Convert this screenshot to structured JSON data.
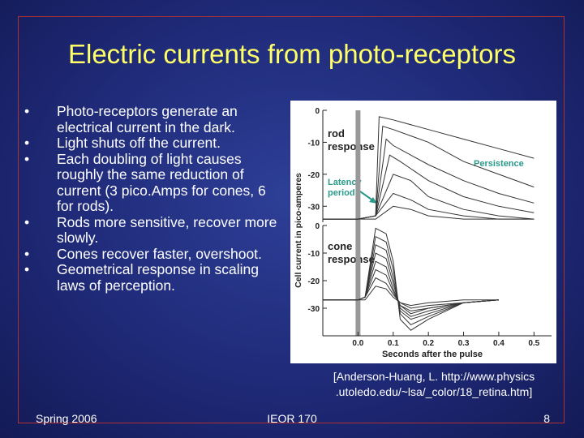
{
  "slide": {
    "title": "Electric currents from photo-receptors",
    "bullets": [
      "Photo-receptors generate an electrical current in the dark.",
      "Light shuts off the current.",
      "Each doubling of light causes roughly the same reduction of current (3 pico.Amps for cones, 6 for rods).",
      "Rods more sensitive, recover more slowly.",
      "Cones recover faster, overshoot.",
      "Geometrical response in scaling laws of perception."
    ],
    "bullet_marker": "•",
    "citation_line1": "[Anderson-Huang, L. http://www.physics",
    "citation_line2": ".utoledo.edu/~lsa/_color/18_retina.htm]",
    "footer_left": "Spring 2006",
    "footer_center": "IEOR 170",
    "footer_right": "8"
  },
  "colors": {
    "title": "#ffff66",
    "text": "#ffffff",
    "trace": "#333333",
    "annotation": "#2a9a8a",
    "stimulus_bar": "#999999"
  },
  "chart_data": {
    "type": "line",
    "ylabel": "Cell current in pico-amperes",
    "xlabel": "Seconds after the pulse",
    "xlim": [
      -0.1,
      0.55
    ],
    "x_ticks": [
      "0.0",
      "0.1",
      "0.2",
      "0.3",
      "0.4",
      "0.5"
    ],
    "x_tick_values": [
      0.0,
      0.1,
      0.2,
      0.3,
      0.4,
      0.5
    ],
    "stimulus_time": 0.0,
    "panels": [
      {
        "name": "rod",
        "label_line1": "rod",
        "label_line2": "response",
        "ylim": [
          -35,
          0
        ],
        "y_ticks": [
          "0",
          "-10",
          "-20",
          "-30"
        ],
        "y_tick_values": [
          0,
          -10,
          -20,
          -30
        ],
        "annotations": [
          {
            "text": "Persistence",
            "color": "#2a9a8a"
          },
          {
            "text_line1": "Latency",
            "text_line2": "period",
            "color": "#2a9a8a"
          }
        ],
        "series": [
          {
            "x": [
              -0.1,
              0.0,
              0.05,
              0.06,
              0.1,
              0.2,
              0.3,
              0.4,
              0.5
            ],
            "y": [
              -34,
              -34,
              -33,
              -2,
              -3,
              -6,
              -9,
              -12,
              -15
            ]
          },
          {
            "x": [
              -0.1,
              0.0,
              0.05,
              0.07,
              0.1,
              0.2,
              0.3,
              0.4,
              0.5
            ],
            "y": [
              -34,
              -34,
              -33,
              -5,
              -6,
              -10,
              -16,
              -20,
              -24
            ]
          },
          {
            "x": [
              -0.1,
              0.0,
              0.05,
              0.08,
              0.1,
              0.2,
              0.3,
              0.4,
              0.5
            ],
            "y": [
              -34,
              -34,
              -33,
              -9,
              -11,
              -17,
              -22,
              -26,
              -29
            ]
          },
          {
            "x": [
              -0.1,
              0.0,
              0.05,
              0.09,
              0.12,
              0.2,
              0.3,
              0.4,
              0.5
            ],
            "y": [
              -34,
              -34,
              -33,
              -14,
              -16,
              -22,
              -27,
              -30,
              -32
            ]
          },
          {
            "x": [
              -0.1,
              0.0,
              0.05,
              0.1,
              0.15,
              0.2,
              0.3,
              0.4,
              0.5
            ],
            "y": [
              -34,
              -34,
              -33,
              -20,
              -22,
              -27,
              -31,
              -33,
              -34
            ]
          },
          {
            "x": [
              -0.1,
              0.0,
              0.05,
              0.1,
              0.15,
              0.2,
              0.3,
              0.4,
              0.5
            ],
            "y": [
              -34,
              -34,
              -33,
              -26,
              -28,
              -31,
              -33,
              -34,
              -34
            ]
          },
          {
            "x": [
              -0.1,
              0.0,
              0.05,
              0.1,
              0.15,
              0.2,
              0.3,
              0.4,
              0.5
            ],
            "y": [
              -34,
              -34,
              -34,
              -30,
              -31,
              -33,
              -34,
              -34,
              -34
            ]
          }
        ]
      },
      {
        "name": "cone",
        "label_line1": "cone",
        "label_line2": "response",
        "ylim": [
          -40,
          0
        ],
        "y_ticks": [
          "0",
          "-10",
          "-20",
          "-30"
        ],
        "y_tick_values": [
          0,
          -10,
          -20,
          -30
        ],
        "series": [
          {
            "x": [
              -0.1,
              0.0,
              0.02,
              0.05,
              0.08,
              0.1,
              0.12,
              0.15,
              0.2,
              0.3,
              0.4
            ],
            "y": [
              -27,
              -27,
              -26,
              -1,
              -3,
              -13,
              -34,
              -38,
              -34,
              -28,
              -27
            ]
          },
          {
            "x": [
              -0.1,
              0.0,
              0.02,
              0.05,
              0.08,
              0.1,
              0.12,
              0.15,
              0.2,
              0.3,
              0.4
            ],
            "y": [
              -27,
              -27,
              -26,
              -4,
              -6,
              -16,
              -32,
              -36,
              -33,
              -28,
              -27
            ]
          },
          {
            "x": [
              -0.1,
              0.0,
              0.02,
              0.05,
              0.08,
              0.1,
              0.12,
              0.15,
              0.2,
              0.3,
              0.4
            ],
            "y": [
              -27,
              -27,
              -26,
              -7,
              -9,
              -19,
              -31,
              -34,
              -32,
              -28,
              -27
            ]
          },
          {
            "x": [
              -0.1,
              0.0,
              0.02,
              0.05,
              0.08,
              0.1,
              0.12,
              0.15,
              0.2,
              0.3,
              0.4
            ],
            "y": [
              -27,
              -27,
              -26,
              -10,
              -12,
              -21,
              -30,
              -33,
              -31,
              -28,
              -27
            ]
          },
          {
            "x": [
              -0.1,
              0.0,
              0.02,
              0.05,
              0.08,
              0.1,
              0.12,
              0.15,
              0.2,
              0.3,
              0.4
            ],
            "y": [
              -27,
              -27,
              -26,
              -13,
              -15,
              -23,
              -29,
              -32,
              -30,
              -28,
              -27
            ]
          },
          {
            "x": [
              -0.1,
              0.0,
              0.02,
              0.05,
              0.08,
              0.1,
              0.12,
              0.15,
              0.2,
              0.3,
              0.4
            ],
            "y": [
              -27,
              -27,
              -26,
              -16,
              -18,
              -24,
              -29,
              -31,
              -30,
              -28,
              -27
            ]
          },
          {
            "x": [
              -0.1,
              0.0,
              0.02,
              0.05,
              0.08,
              0.1,
              0.12,
              0.15,
              0.2,
              0.3,
              0.4
            ],
            "y": [
              -27,
              -27,
              -26,
              -19,
              -21,
              -25,
              -28,
              -30,
              -29,
              -28,
              -27
            ]
          },
          {
            "x": [
              -0.1,
              0.0,
              0.02,
              0.05,
              0.08,
              0.1,
              0.12,
              0.15,
              0.2,
              0.3,
              0.4
            ],
            "y": [
              -27,
              -27,
              -27,
              -22,
              -23,
              -26,
              -28,
              -29,
              -28,
              -27,
              -27
            ]
          }
        ]
      }
    ]
  }
}
